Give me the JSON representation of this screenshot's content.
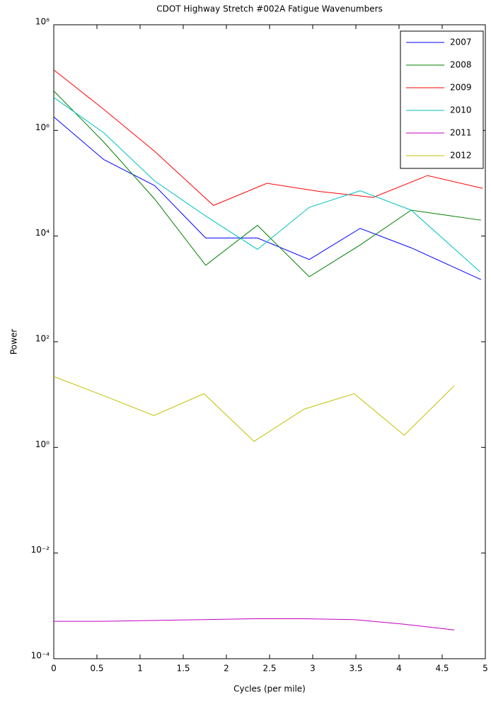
{
  "chart_data": {
    "type": "line",
    "title": "CDOT Highway Stretch #002A Fatigue Wavenumbers",
    "x_label": "Cycles (per mile)",
    "y_label": "Power",
    "log_y": true,
    "grid": false,
    "legend": "upper right",
    "xlim": [
      0,
      5
    ],
    "xticks": [
      0,
      0.5,
      1,
      1.5,
      2,
      2.5,
      3,
      3.5,
      4,
      4.5,
      5
    ],
    "ylim": [
      0.0001,
      100000000
    ],
    "yticks": [
      {
        "value": 0.0001,
        "label": "10⁻⁴"
      },
      {
        "value": 0.01,
        "label": "10⁻²"
      },
      {
        "value": 1,
        "label": "10⁰"
      },
      {
        "value": 100,
        "label": "10²"
      },
      {
        "value": 10000,
        "label": "10⁴"
      },
      {
        "value": 1000000,
        "label": "10⁶"
      },
      {
        "value": 100000000,
        "label": "10⁸"
      }
    ],
    "series": [
      {
        "name": "2007",
        "color": "#0000ff",
        "x": [
          0,
          0.58,
          1.17,
          1.76,
          2.36,
          2.96,
          3.55,
          4.14,
          4.95
        ],
        "values": [
          1800000,
          280000,
          90000,
          9200,
          9200,
          3600,
          14000,
          6000,
          1500
        ]
      },
      {
        "name": "2008",
        "color": "#008000",
        "x": [
          0,
          0.58,
          1.17,
          1.76,
          2.36,
          2.96,
          3.55,
          4.14,
          4.95
        ],
        "values": [
          5600000,
          600000,
          50000,
          2800,
          16000,
          1700,
          6800,
          31000,
          20000
        ]
      },
      {
        "name": "2009",
        "color": "#ff0000",
        "x": [
          0,
          0.58,
          1.17,
          1.85,
          2.47,
          3.08,
          3.7,
          4.33,
          4.97
        ],
        "values": [
          14000000,
          2500000,
          400000,
          38000,
          100000,
          70000,
          54000,
          140000,
          80000
        ]
      },
      {
        "name": "2010",
        "color": "#00c0c0",
        "x": [
          0,
          0.58,
          1.17,
          1.76,
          2.36,
          2.96,
          3.55,
          4.14,
          4.94
        ],
        "values": [
          4200000,
          900000,
          110000,
          24000,
          5600,
          35000,
          72000,
          31000,
          2100
        ]
      },
      {
        "name": "2011",
        "color": "#c000c0",
        "x": [
          0,
          0.58,
          1.16,
          1.74,
          2.32,
          2.9,
          3.48,
          4.06,
          4.64
        ],
        "values": [
          0.00051,
          0.00051,
          0.00053,
          0.00055,
          0.00057,
          0.00057,
          0.00055,
          0.00045,
          0.00035
        ]
      },
      {
        "name": "2012",
        "color": "#c0c000",
        "x": [
          0,
          0.58,
          1.16,
          1.74,
          2.32,
          2.9,
          3.48,
          4.06,
          4.64
        ],
        "values": [
          22,
          9.5,
          4,
          10.4,
          1.3,
          5.3,
          10.4,
          1.7,
          14.7
        ]
      }
    ]
  }
}
